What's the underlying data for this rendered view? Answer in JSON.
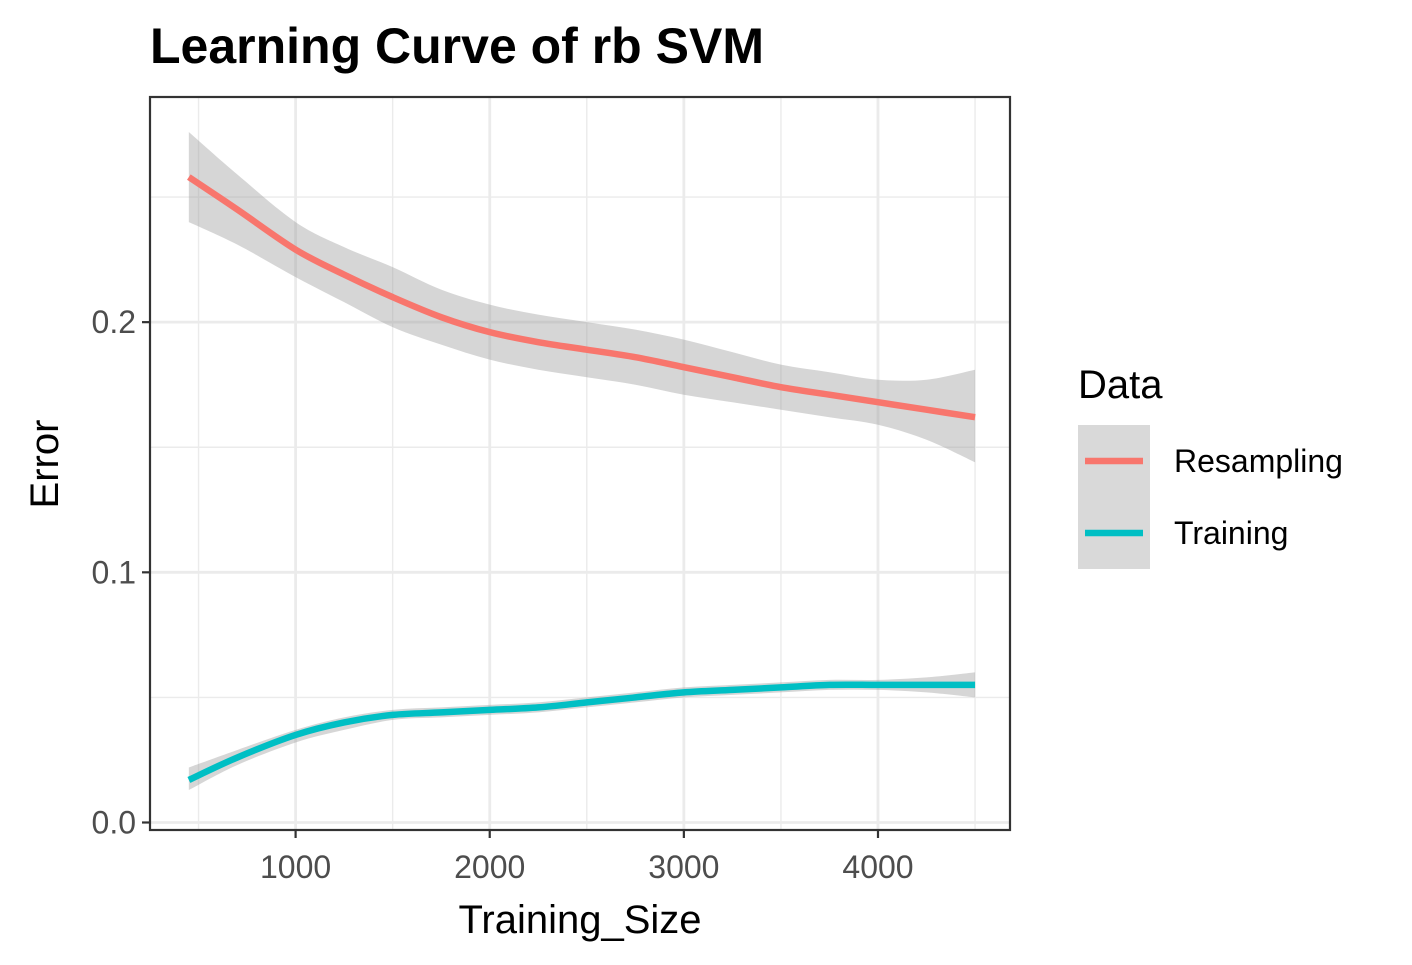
{
  "chart_data": {
    "type": "line",
    "title": "Learning Curve of rb SVM",
    "xlabel": "Training_Size",
    "ylabel": "Error",
    "xlim": [
      250,
      4680
    ],
    "ylim": [
      -0.003,
      0.29
    ],
    "x_ticks": [
      1000,
      2000,
      3000,
      4000
    ],
    "x_tick_labels": [
      "1000",
      "2000",
      "3000",
      "4000"
    ],
    "y_ticks": [
      0.0,
      0.1,
      0.2
    ],
    "y_tick_labels": [
      "0.0",
      "0.1",
      "0.2"
    ],
    "x_minor_ticks": [
      500,
      1500,
      2500,
      3500,
      4500
    ],
    "y_minor_ticks": [
      0.05,
      0.15,
      0.25
    ],
    "grid": true,
    "legend": {
      "title": "Data",
      "placement": "right",
      "entries": [
        "Resampling",
        "Training"
      ]
    },
    "series": [
      {
        "name": "Resampling",
        "color": "#F8766D",
        "x": [
          450,
          700,
          1000,
          1250,
          1500,
          1750,
          2000,
          2250,
          2500,
          2750,
          3000,
          3250,
          3500,
          3750,
          4000,
          4250,
          4500
        ],
        "values": [
          0.258,
          0.245,
          0.229,
          0.219,
          0.21,
          0.202,
          0.196,
          0.192,
          0.189,
          0.186,
          0.182,
          0.178,
          0.174,
          0.171,
          0.168,
          0.165,
          0.162
        ],
        "lower": [
          0.24,
          0.231,
          0.218,
          0.208,
          0.198,
          0.191,
          0.185,
          0.181,
          0.178,
          0.175,
          0.171,
          0.168,
          0.165,
          0.162,
          0.159,
          0.153,
          0.144
        ],
        "upper": [
          0.276,
          0.259,
          0.24,
          0.23,
          0.222,
          0.213,
          0.207,
          0.203,
          0.2,
          0.197,
          0.193,
          0.188,
          0.183,
          0.18,
          0.177,
          0.177,
          0.181
        ]
      },
      {
        "name": "Training",
        "color": "#00BFC4",
        "x": [
          450,
          700,
          1000,
          1250,
          1500,
          1750,
          2000,
          2250,
          2500,
          2750,
          3000,
          3250,
          3500,
          3750,
          4000,
          4250,
          4500
        ],
        "values": [
          0.017,
          0.026,
          0.035,
          0.04,
          0.043,
          0.044,
          0.045,
          0.046,
          0.048,
          0.05,
          0.052,
          0.053,
          0.054,
          0.055,
          0.055,
          0.055,
          0.055
        ],
        "lower": [
          0.013,
          0.023,
          0.032,
          0.037,
          0.041,
          0.042,
          0.043,
          0.044,
          0.046,
          0.048,
          0.05,
          0.051,
          0.052,
          0.053,
          0.053,
          0.052,
          0.05
        ],
        "upper": [
          0.022,
          0.029,
          0.037,
          0.042,
          0.045,
          0.046,
          0.047,
          0.048,
          0.05,
          0.052,
          0.054,
          0.055,
          0.056,
          0.057,
          0.057,
          0.058,
          0.06
        ]
      }
    ],
    "ribbon_color": "#999999"
  }
}
